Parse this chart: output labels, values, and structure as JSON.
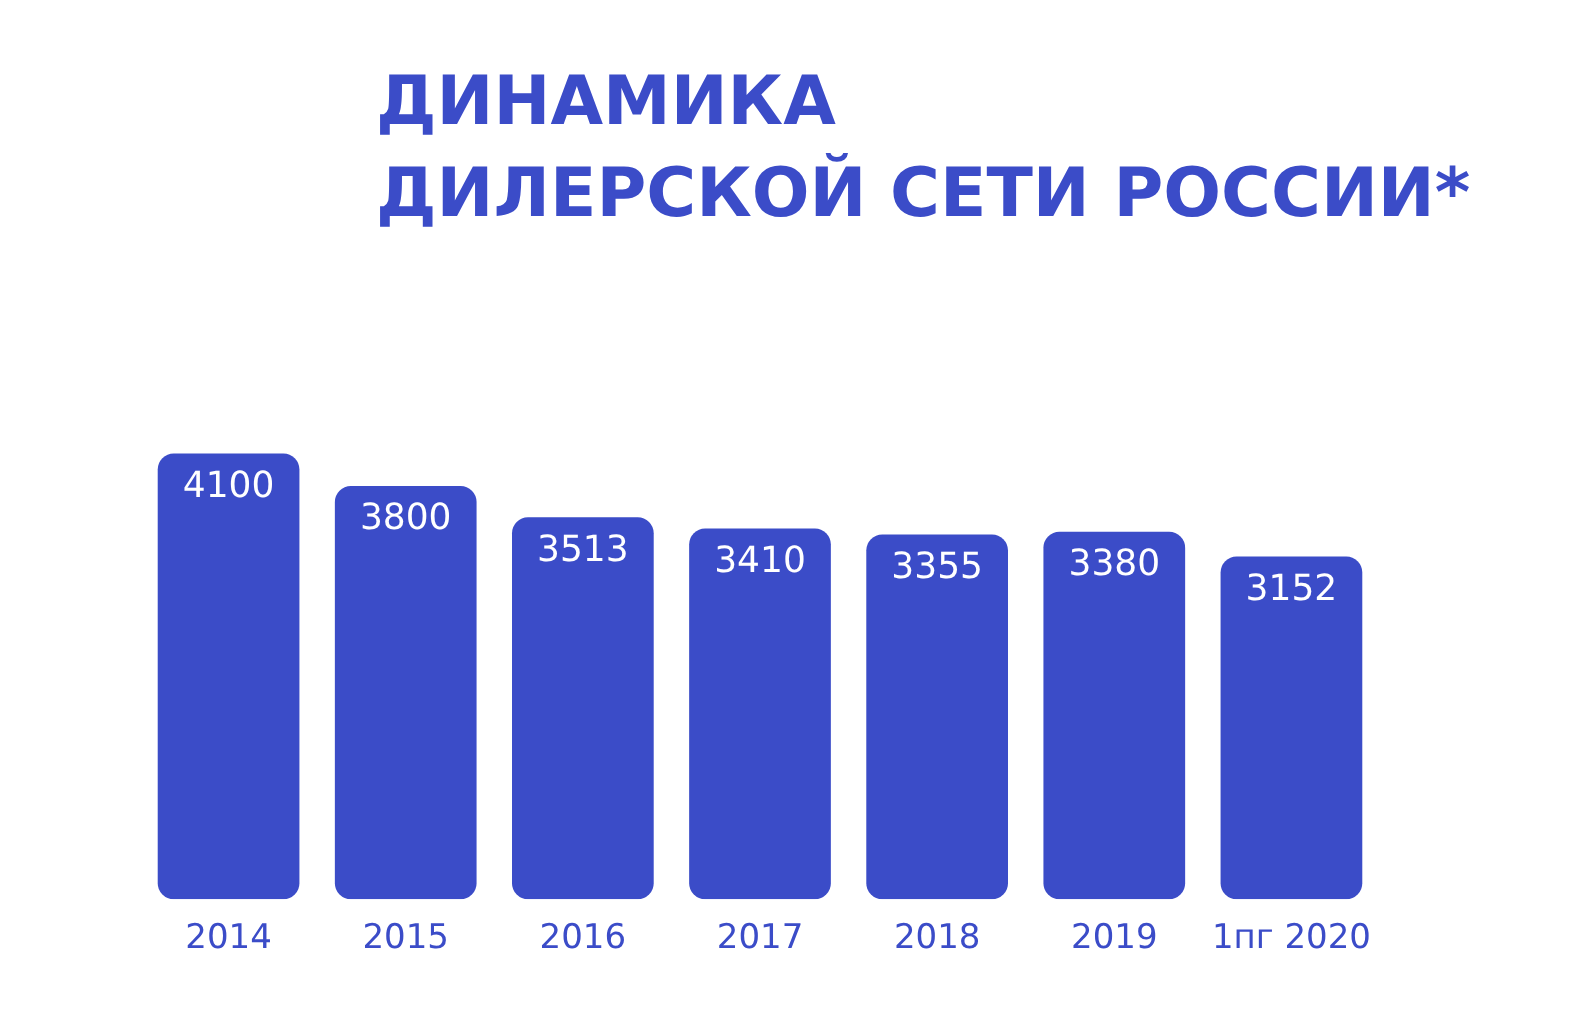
{
  "chart_data": {
    "type": "bar",
    "title": "ДИНАМИКА ДИЛЕРСКОЙ СЕТИ РОССИИ*",
    "categories": [
      "2014",
      "2015",
      "2016",
      "2017",
      "2018",
      "2019",
      "1пг 2020"
    ],
    "values": [
      4100,
      3800,
      3513,
      3410,
      3355,
      3380,
      3152
    ],
    "color": "#3b4cc8",
    "data_labels": true,
    "tick_labels": "x",
    "grid": false,
    "legend": false
  }
}
